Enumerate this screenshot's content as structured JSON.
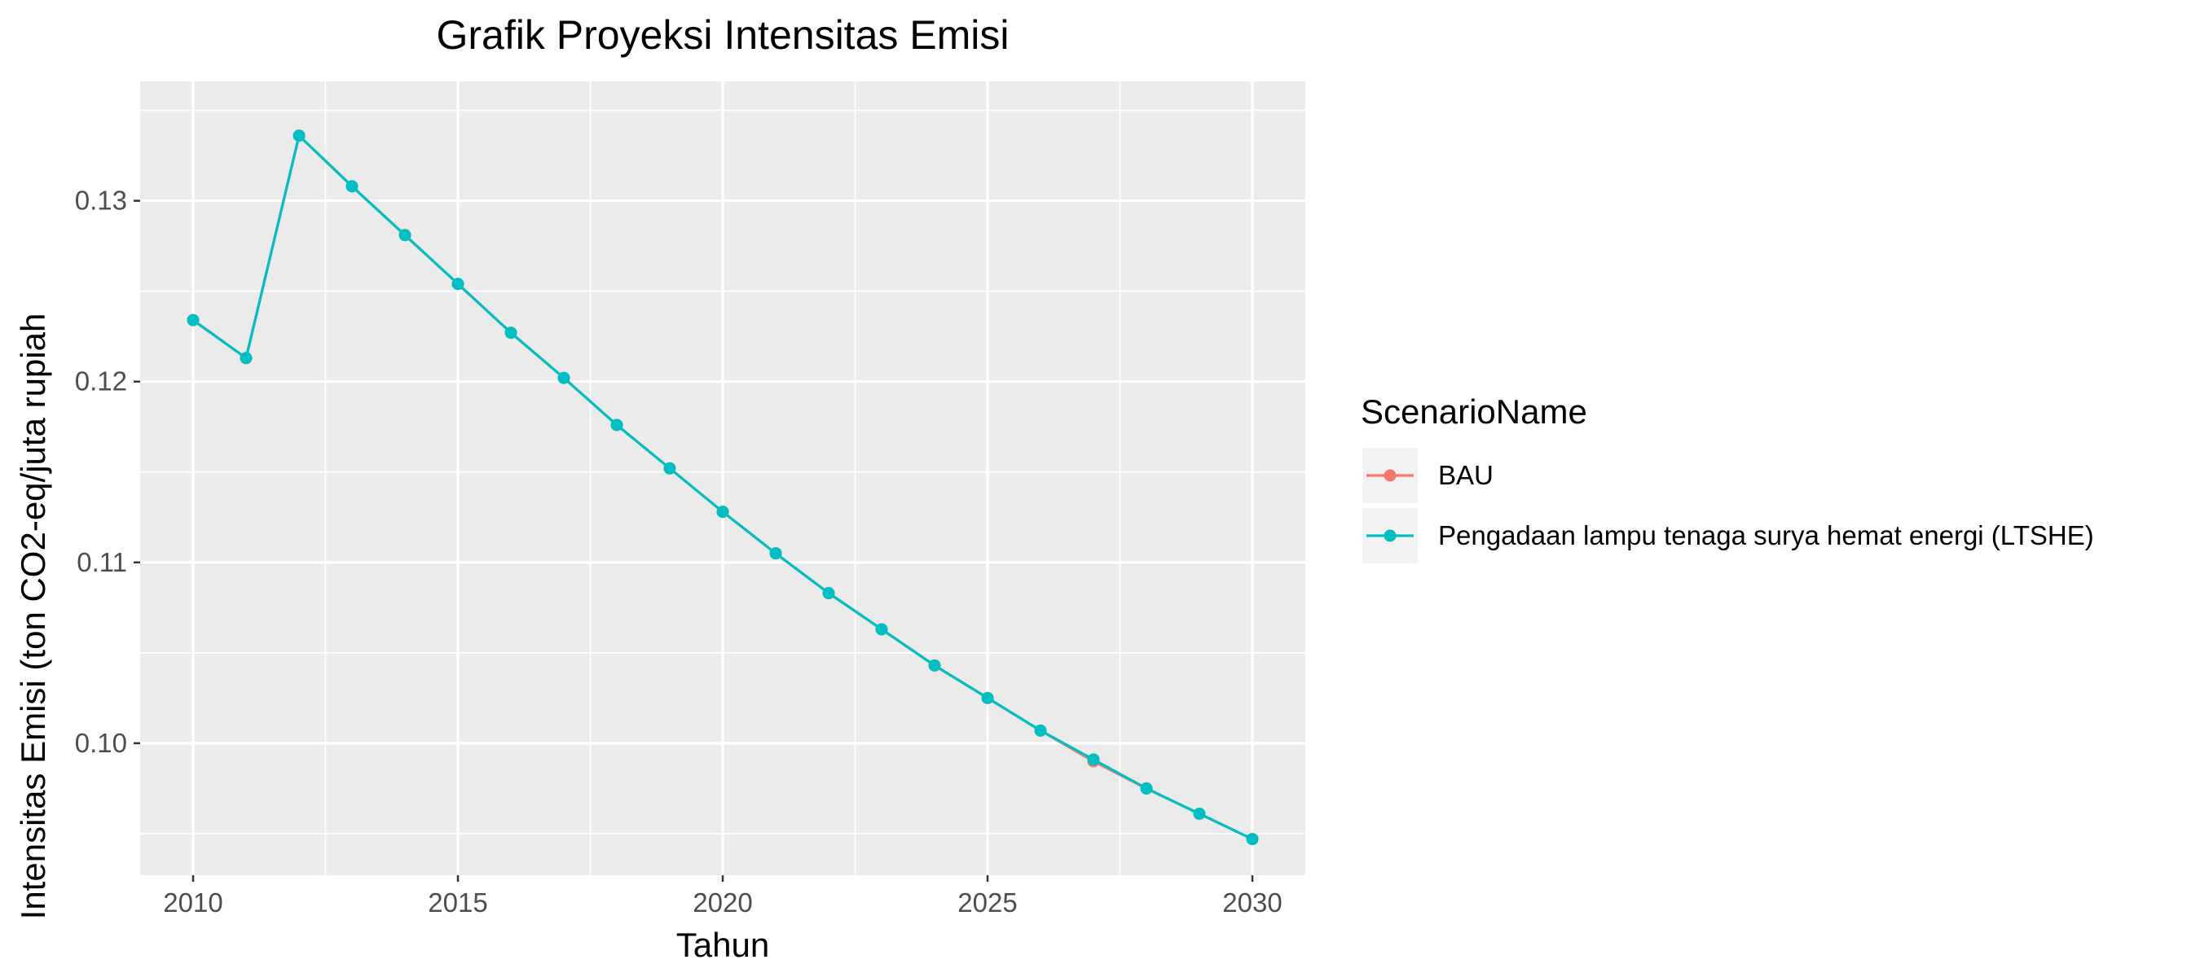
{
  "chart_data": {
    "type": "line",
    "title": "Grafik Proyeksi Intensitas Emisi",
    "xlabel": "Tahun",
    "ylabel": "Intensitas Emisi (ton CO2-eq/juta rupiah",
    "xlim": [
      2009,
      2031
    ],
    "ylim": [
      0.0927,
      0.1366
    ],
    "x_ticks": [
      2010,
      2015,
      2020,
      2025,
      2030
    ],
    "y_ticks": [
      0.1,
      0.11,
      0.12,
      0.13
    ],
    "y_tick_labels": [
      "0.10",
      "0.11",
      "0.12",
      "0.13"
    ],
    "grid": true,
    "panel_background": "#ebebeb",
    "legend": {
      "title": "ScenarioName",
      "position": "right"
    },
    "x": [
      2010,
      2011,
      2012,
      2013,
      2014,
      2015,
      2016,
      2017,
      2018,
      2019,
      2020,
      2021,
      2022,
      2023,
      2024,
      2025,
      2026,
      2027,
      2028,
      2029,
      2030
    ],
    "series": [
      {
        "name": "BAU",
        "color": "#f8766d",
        "values": [
          0.1234,
          0.1213,
          0.1336,
          0.1308,
          0.1281,
          0.1254,
          0.1227,
          0.1202,
          0.1176,
          0.1152,
          0.1128,
          0.1105,
          0.1083,
          0.1063,
          0.1043,
          0.1025,
          0.1007,
          0.099,
          0.0975,
          0.0961,
          0.0947
        ]
      },
      {
        "name": "Pengadaan lampu tenaga surya hemat energi (LTSHE)",
        "color": "#00bfc4",
        "values": [
          0.1234,
          0.1213,
          0.1336,
          0.1308,
          0.1281,
          0.1254,
          0.1227,
          0.1202,
          0.1176,
          0.1152,
          0.1128,
          0.1105,
          0.1083,
          0.1063,
          0.1043,
          0.1025,
          0.1007,
          0.0991,
          0.0975,
          0.0961,
          0.0947
        ]
      }
    ]
  }
}
